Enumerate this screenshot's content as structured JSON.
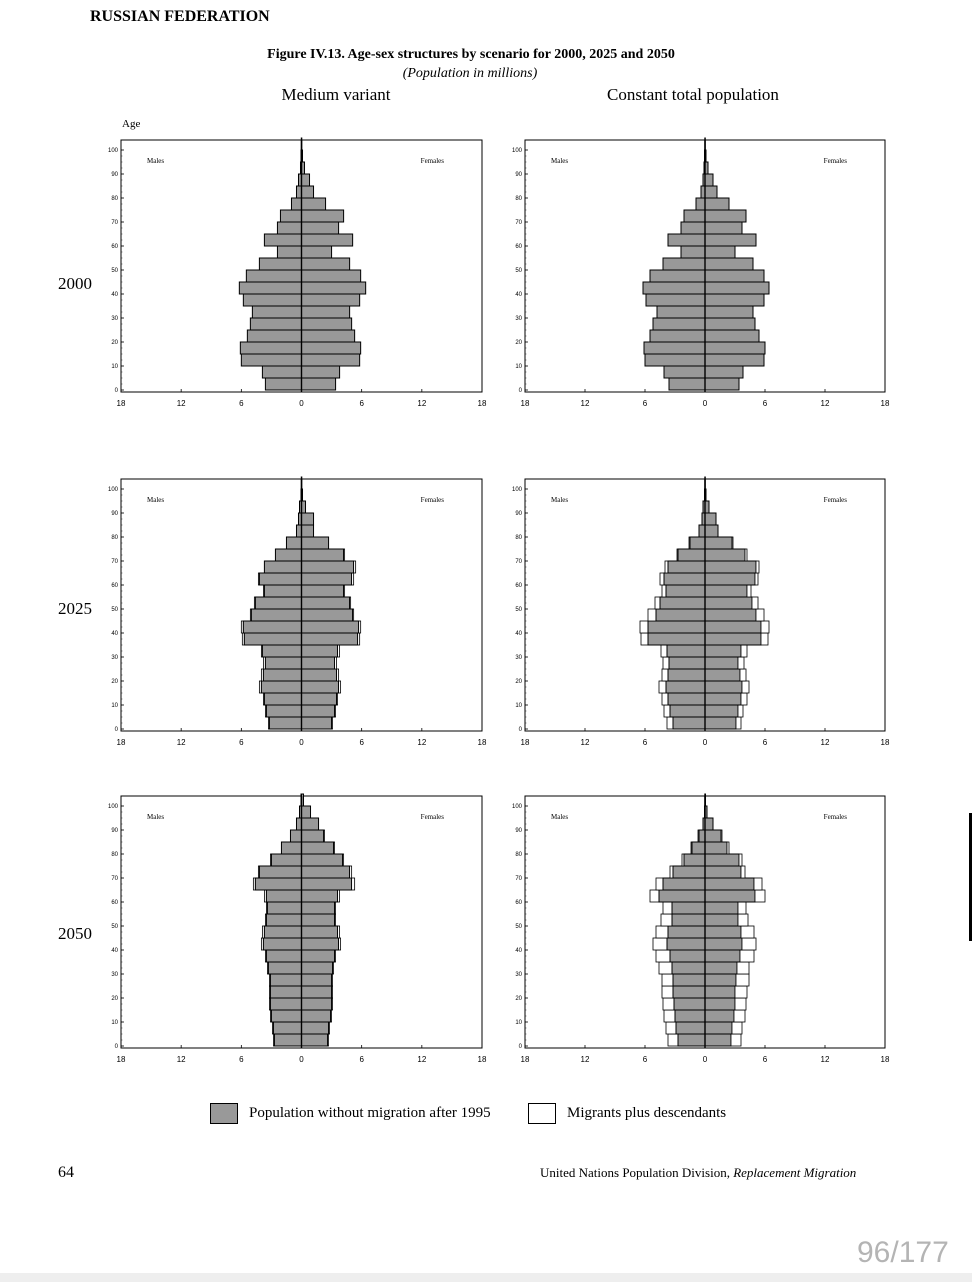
{
  "header": {
    "country": "RUSSIAN FEDERATION",
    "figure_title": "Figure IV.13.  Age-sex structures by scenario for 2000, 2025 and 2050",
    "figure_subtitle": "(Population in millions)",
    "col_left": "Medium variant",
    "col_right": "Constant total population",
    "age_label": "Age"
  },
  "years": [
    "2000",
    "2025",
    "2050"
  ],
  "legend": {
    "base": "Population without migration after 1995",
    "migrants": "Migrants plus descendants"
  },
  "colors": {
    "base": "#999999",
    "migrants": "#ffffff",
    "stroke": "#000000"
  },
  "footer": {
    "page_number": "64",
    "source": "United Nations Population Division, ",
    "source_italic": "Replacement Migration",
    "page_counter": "96/177"
  },
  "chart_data": [
    {
      "type": "bar",
      "orientation": "horizontal pyramid",
      "scenario": "Medium variant",
      "year": "2000",
      "males_label": "Males",
      "females_label": "Females",
      "y_ticks": [
        "0",
        "10",
        "20",
        "30",
        "40",
        "50",
        "60",
        "70",
        "80",
        "90",
        "100"
      ],
      "x_ticks": [
        "18",
        "12",
        "6",
        "0",
        "6",
        "12",
        "18"
      ],
      "xlim": [
        -18,
        18
      ],
      "ylim": [
        0,
        100
      ],
      "age_groups": [
        "0-4",
        "5-9",
        "10-14",
        "15-19",
        "20-24",
        "25-29",
        "30-34",
        "35-39",
        "40-44",
        "45-49",
        "50-54",
        "55-59",
        "60-64",
        "65-69",
        "70-74",
        "75-79",
        "80-84",
        "85-89",
        "90-94",
        "95-99",
        "100+"
      ],
      "males_base": [
        3.6,
        3.9,
        6.0,
        6.1,
        5.4,
        5.1,
        4.9,
        5.8,
        6.2,
        5.5,
        4.2,
        2.4,
        3.7,
        2.4,
        2.1,
        1.0,
        0.5,
        0.3,
        0.1,
        0.05,
        0.02
      ],
      "males_migr": [
        0,
        0,
        0,
        0,
        0,
        0,
        0,
        0,
        0,
        0,
        0,
        0,
        0,
        0,
        0,
        0,
        0,
        0,
        0,
        0,
        0
      ],
      "females_base": [
        3.4,
        3.8,
        5.8,
        5.9,
        5.3,
        5.0,
        4.8,
        5.8,
        6.4,
        5.9,
        4.8,
        3.0,
        5.1,
        3.7,
        4.2,
        2.4,
        1.2,
        0.8,
        0.3,
        0.1,
        0.03
      ],
      "females_migr": [
        0,
        0,
        0,
        0,
        0,
        0,
        0,
        0,
        0,
        0,
        0,
        0,
        0,
        0,
        0,
        0,
        0,
        0,
        0,
        0,
        0
      ]
    },
    {
      "type": "bar",
      "orientation": "horizontal pyramid",
      "scenario": "Constant total population",
      "year": "2000",
      "males_label": "Males",
      "females_label": "Females",
      "y_ticks": [
        "0",
        "10",
        "20",
        "30",
        "40",
        "50",
        "60",
        "70",
        "80",
        "90",
        "100"
      ],
      "x_ticks": [
        "18",
        "12",
        "6",
        "0",
        "6",
        "12",
        "18"
      ],
      "xlim": [
        -18,
        18
      ],
      "ylim": [
        0,
        100
      ],
      "age_groups": [
        "0-4",
        "5-9",
        "10-14",
        "15-19",
        "20-24",
        "25-29",
        "30-34",
        "35-39",
        "40-44",
        "45-49",
        "50-54",
        "55-59",
        "60-64",
        "65-69",
        "70-74",
        "75-79",
        "80-84",
        "85-89",
        "90-94",
        "95-99",
        "100+"
      ],
      "males_base": [
        3.6,
        4.1,
        6.0,
        6.1,
        5.5,
        5.2,
        4.8,
        5.9,
        6.2,
        5.5,
        4.2,
        2.4,
        3.7,
        2.4,
        2.1,
        0.9,
        0.4,
        0.2,
        0.1,
        0.05,
        0.02
      ],
      "males_migr": [
        0,
        0,
        0,
        0,
        0,
        0,
        0,
        0,
        0,
        0,
        0,
        0,
        0,
        0,
        0,
        0,
        0,
        0,
        0,
        0,
        0
      ],
      "females_base": [
        3.4,
        3.8,
        5.9,
        6.0,
        5.4,
        5.0,
        4.8,
        5.9,
        6.4,
        5.9,
        4.8,
        3.0,
        5.1,
        3.7,
        4.1,
        2.4,
        1.2,
        0.8,
        0.3,
        0.1,
        0.03
      ],
      "females_migr": [
        0,
        0,
        0,
        0,
        0,
        0,
        0,
        0,
        0,
        0,
        0,
        0,
        0,
        0,
        0,
        0,
        0,
        0,
        0,
        0,
        0
      ]
    },
    {
      "type": "bar",
      "orientation": "horizontal pyramid",
      "scenario": "Medium variant",
      "year": "2025",
      "males_label": "Males",
      "females_label": "Females",
      "y_ticks": [
        "0",
        "10",
        "20",
        "30",
        "40",
        "50",
        "60",
        "70",
        "80",
        "90",
        "100"
      ],
      "x_ticks": [
        "18",
        "12",
        "6",
        "0",
        "6",
        "12",
        "18"
      ],
      "xlim": [
        -18,
        18
      ],
      "ylim": [
        0,
        100
      ],
      "age_groups": [
        "0-4",
        "5-9",
        "10-14",
        "15-19",
        "20-24",
        "25-29",
        "30-34",
        "35-39",
        "40-44",
        "45-49",
        "50-54",
        "55-59",
        "60-64",
        "65-69",
        "70-74",
        "75-79",
        "80-84",
        "85-89",
        "90-94",
        "95-99",
        "100+"
      ],
      "males_base": [
        3.2,
        3.5,
        3.7,
        4.0,
        3.8,
        3.6,
        3.9,
        5.7,
        5.8,
        5.0,
        4.6,
        3.7,
        4.2,
        3.7,
        2.6,
        1.5,
        0.5,
        0.3,
        0.2,
        0.05,
        0.02
      ],
      "males_migr": [
        0.1,
        0.1,
        0.1,
        0.2,
        0.2,
        0.2,
        0.1,
        0.2,
        0.2,
        0.1,
        0.1,
        0.1,
        0.1,
        0,
        0,
        0,
        0,
        0,
        0,
        0,
        0
      ],
      "females_base": [
        3.0,
        3.3,
        3.5,
        3.7,
        3.5,
        3.3,
        3.6,
        5.6,
        5.7,
        5.1,
        4.8,
        4.2,
        5.0,
        5.2,
        4.2,
        2.7,
        1.2,
        1.2,
        0.4,
        0.1,
        0.03
      ],
      "females_migr": [
        0.1,
        0.1,
        0.1,
        0.2,
        0.2,
        0.2,
        0.2,
        0.2,
        0.2,
        0.1,
        0.1,
        0.1,
        0.2,
        0.2,
        0.1,
        0,
        0,
        0,
        0,
        0,
        0
      ]
    },
    {
      "type": "bar",
      "orientation": "horizontal pyramid",
      "scenario": "Constant total population",
      "year": "2025",
      "males_label": "Males",
      "females_label": "Females",
      "y_ticks": [
        "0",
        "10",
        "20",
        "30",
        "40",
        "50",
        "60",
        "70",
        "80",
        "90",
        "100"
      ],
      "x_ticks": [
        "18",
        "12",
        "6",
        "0",
        "6",
        "12",
        "18"
      ],
      "xlim": [
        -18,
        18
      ],
      "ylim": [
        0,
        100
      ],
      "age_groups": [
        "0-4",
        "5-9",
        "10-14",
        "15-19",
        "20-24",
        "25-29",
        "30-34",
        "35-39",
        "40-44",
        "45-49",
        "50-54",
        "55-59",
        "60-64",
        "65-69",
        "70-74",
        "75-79",
        "80-84",
        "85-89",
        "90-94",
        "95-99",
        "100+"
      ],
      "males_base": [
        3.2,
        3.5,
        3.7,
        3.9,
        3.7,
        3.6,
        3.8,
        5.7,
        5.7,
        4.9,
        4.5,
        3.9,
        4.1,
        3.7,
        2.7,
        1.5,
        0.6,
        0.3,
        0.2,
        0.05,
        0.02
      ],
      "males_migr": [
        0.6,
        0.6,
        0.6,
        0.7,
        0.6,
        0.6,
        0.6,
        0.7,
        0.8,
        0.8,
        0.5,
        0.4,
        0.4,
        0.3,
        0.1,
        0.1,
        0,
        0,
        0,
        0,
        0
      ],
      "females_base": [
        3.1,
        3.3,
        3.6,
        3.7,
        3.5,
        3.3,
        3.6,
        5.6,
        5.6,
        5.1,
        4.7,
        4.2,
        5.0,
        5.1,
        4.0,
        2.7,
        1.3,
        1.1,
        0.4,
        0.1,
        0.03
      ],
      "females_migr": [
        0.5,
        0.5,
        0.6,
        0.7,
        0.6,
        0.6,
        0.6,
        0.7,
        0.8,
        0.8,
        0.6,
        0.4,
        0.3,
        0.3,
        0.2,
        0.1,
        0,
        0,
        0,
        0,
        0
      ]
    },
    {
      "type": "bar",
      "orientation": "horizontal pyramid",
      "scenario": "Medium variant",
      "year": "2050",
      "males_label": "Males",
      "females_label": "Females",
      "y_ticks": [
        "0",
        "10",
        "20",
        "30",
        "40",
        "50",
        "60",
        "70",
        "80",
        "90",
        "100"
      ],
      "x_ticks": [
        "18",
        "12",
        "6",
        "0",
        "6",
        "12",
        "18"
      ],
      "xlim": [
        -18,
        18
      ],
      "ylim": [
        0,
        100
      ],
      "age_groups": [
        "0-4",
        "5-9",
        "10-14",
        "15-19",
        "20-24",
        "25-29",
        "30-34",
        "35-39",
        "40-44",
        "45-49",
        "50-54",
        "55-59",
        "60-64",
        "65-69",
        "70-74",
        "75-79",
        "80-84",
        "85-89",
        "90-94",
        "95-99",
        "100+"
      ],
      "males_base": [
        2.7,
        2.8,
        3.0,
        3.1,
        3.1,
        3.1,
        3.3,
        3.5,
        3.8,
        3.7,
        3.5,
        3.4,
        3.5,
        4.6,
        4.2,
        3.0,
        2.0,
        1.1,
        0.5,
        0.2,
        0.05
      ],
      "males_migr": [
        0.1,
        0.1,
        0.1,
        0.1,
        0.1,
        0.1,
        0.1,
        0.1,
        0.2,
        0.2,
        0.1,
        0.1,
        0.2,
        0.2,
        0.1,
        0.1,
        0,
        0,
        0,
        0,
        0
      ],
      "females_base": [
        2.6,
        2.7,
        2.9,
        3.0,
        3.0,
        3.0,
        3.1,
        3.3,
        3.7,
        3.6,
        3.3,
        3.3,
        3.6,
        5.0,
        4.8,
        4.1,
        3.2,
        2.2,
        1.7,
        0.9,
        0.2
      ],
      "females_migr": [
        0.1,
        0.1,
        0.1,
        0.1,
        0.1,
        0.1,
        0.1,
        0.1,
        0.2,
        0.2,
        0.1,
        0.1,
        0.2,
        0.3,
        0.2,
        0.1,
        0.1,
        0.1,
        0,
        0,
        0
      ]
    },
    {
      "type": "bar",
      "orientation": "horizontal pyramid",
      "scenario": "Constant total population",
      "year": "2050",
      "males_label": "Males",
      "females_label": "Females",
      "y_ticks": [
        "0",
        "10",
        "20",
        "30",
        "40",
        "50",
        "60",
        "70",
        "80",
        "90",
        "100"
      ],
      "x_ticks": [
        "18",
        "12",
        "6",
        "0",
        "6",
        "12",
        "18"
      ],
      "xlim": [
        -18,
        18
      ],
      "ylim": [
        0,
        100
      ],
      "age_groups": [
        "0-4",
        "5-9",
        "10-14",
        "15-19",
        "20-24",
        "25-29",
        "30-34",
        "35-39",
        "40-44",
        "45-49",
        "50-54",
        "55-59",
        "60-64",
        "65-69",
        "70-74",
        "75-79",
        "80-84",
        "85-89",
        "90-94",
        "95-99",
        "100+"
      ],
      "males_base": [
        2.7,
        2.9,
        3.0,
        3.1,
        3.2,
        3.2,
        3.3,
        3.5,
        3.8,
        3.7,
        3.3,
        3.3,
        4.6,
        4.2,
        3.2,
        2.1,
        1.3,
        0.6,
        0.2,
        0.05,
        0.02
      ],
      "males_migr": [
        1.0,
        1.0,
        1.1,
        1.1,
        1.1,
        1.1,
        1.3,
        1.4,
        1.4,
        1.2,
        1.1,
        0.9,
        0.9,
        0.7,
        0.3,
        0.2,
        0.1,
        0.1,
        0,
        0,
        0
      ],
      "females_base": [
        2.6,
        2.7,
        2.9,
        3.0,
        3.0,
        3.1,
        3.2,
        3.5,
        3.7,
        3.6,
        3.3,
        3.3,
        5.0,
        4.9,
        3.6,
        3.4,
        2.2,
        1.6,
        0.8,
        0.2,
        0.05
      ],
      "females_migr": [
        1.0,
        1.0,
        1.1,
        1.1,
        1.2,
        1.3,
        1.2,
        1.4,
        1.4,
        1.3,
        1.0,
        0.8,
        1.0,
        0.8,
        0.4,
        0.3,
        0.2,
        0.1,
        0,
        0,
        0
      ]
    }
  ]
}
